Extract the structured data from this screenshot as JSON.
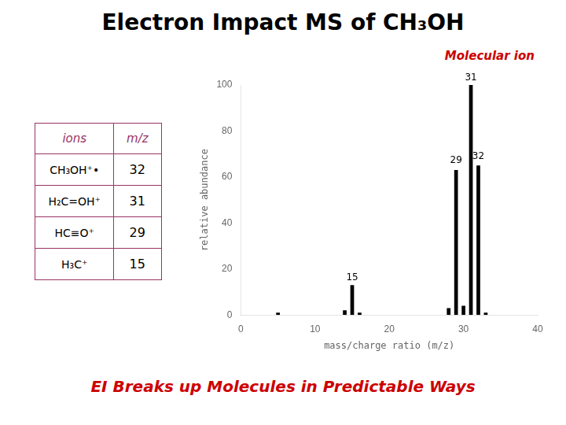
{
  "chart_data": {
    "type": "bar",
    "title": "Electron Impact MS of CH₃OH",
    "x": [
      15,
      29,
      31,
      32,
      5,
      14,
      16,
      28,
      30,
      33
    ],
    "values": [
      13,
      63,
      100,
      65,
      1,
      2,
      1,
      3,
      4,
      1
    ],
    "color": "#000000",
    "xlabel": "mass/charge ratio (m/z)",
    "ylabel": "relative abundance",
    "xlim": [
      0,
      40
    ],
    "ylim": [
      0,
      100
    ],
    "xticks": [
      0,
      10,
      20,
      30,
      40
    ],
    "yticks": [
      0,
      20,
      40,
      60,
      80,
      100
    ],
    "grid": false,
    "legend": false,
    "annotations": [
      {
        "text": "15",
        "x": 15,
        "y": 14
      },
      {
        "text": "29",
        "x": 29,
        "y": 65
      },
      {
        "text": "31",
        "x": 31,
        "y": 101
      },
      {
        "text": "32",
        "x": 32,
        "y": 67
      },
      {
        "text": "Molecular ion",
        "color": "#cc0000"
      },
      {
        "text": "EI Breaks up Molecules in Predictable Ways",
        "color": "#cc0000"
      }
    ],
    "table": {
      "color": "#993366",
      "columns": [
        "ions",
        "m/z"
      ],
      "rows": [
        [
          "CH₃OH⁺•",
          32
        ],
        [
          "H₂C=OH⁺",
          31
        ],
        [
          "HC≡O⁺",
          29
        ],
        [
          "H₃C⁺",
          15
        ]
      ]
    }
  }
}
